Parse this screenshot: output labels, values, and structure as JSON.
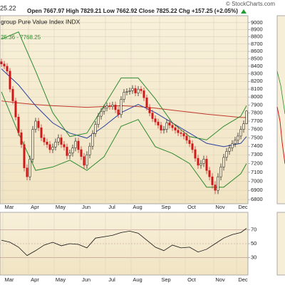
{
  "chart_data": [
    {
      "type": "candlestick",
      "credit": "© StockCharts.com",
      "quote_line": "Open 7667.97 High 7829.21 Low 7662.92 Close 7825.22 Chg +157.25 (+2.05%)",
      "price_note": "25.22",
      "title": "group Pure Value Index  INDX",
      "band_label": "25.36 - 7768.25",
      "xlim": [
        -0.5,
        86.5
      ],
      "xticks": [
        {
          "value": 1,
          "label": "Mar"
        },
        {
          "value": 10,
          "label": "Apr"
        },
        {
          "value": 19,
          "label": "May"
        },
        {
          "value": 28,
          "label": "Jun"
        },
        {
          "value": 37,
          "label": "Jul"
        },
        {
          "value": 46,
          "label": "Aug"
        },
        {
          "value": 56,
          "label": "Sep"
        },
        {
          "value": 65,
          "label": "Oct"
        },
        {
          "value": 75,
          "label": "Nov"
        },
        {
          "value": 83,
          "label": "Dec"
        }
      ],
      "x": [
        0,
        1,
        2,
        3,
        4,
        5,
        6,
        7,
        8,
        9,
        10,
        11,
        12,
        13,
        14,
        15,
        16,
        17,
        18,
        19,
        20,
        21,
        22,
        23,
        24,
        25,
        26,
        27,
        28,
        29,
        30,
        31,
        32,
        33,
        34,
        35,
        36,
        37,
        38,
        39,
        40,
        41,
        42,
        43,
        44,
        45,
        46,
        47,
        48,
        49,
        50,
        51,
        52,
        53,
        54,
        55,
        56,
        57,
        58,
        59,
        60,
        61,
        62,
        63,
        64,
        65,
        66,
        67,
        68,
        69,
        70,
        71,
        72,
        73,
        74,
        75,
        76,
        77,
        78,
        79,
        80,
        81,
        82,
        83,
        84,
        85,
        86
      ],
      "open": [
        8460,
        8430,
        8400,
        8335,
        8100,
        7950,
        7750,
        7560,
        7420,
        7150,
        7050,
        7250,
        7600,
        7700,
        7620,
        7500,
        7450,
        7420,
        7360,
        7390,
        7450,
        7500,
        7420,
        7390,
        7290,
        7320,
        7380,
        7460,
        7360,
        7280,
        7180,
        7300,
        7400,
        7550,
        7660,
        7760,
        7820,
        7860,
        7890,
        7880,
        7900,
        7840,
        7780,
        7970,
        8060,
        8070,
        8080,
        8110,
        8050,
        8100,
        8080,
        7990,
        7870,
        7800,
        7730,
        7690,
        7650,
        7590,
        7600,
        7680,
        7650,
        7620,
        7590,
        7560,
        7550,
        7520,
        7470,
        7430,
        7360,
        7260,
        7180,
        7200,
        7250,
        7120,
        7050,
        6960,
        6900,
        7050,
        7160,
        7270,
        7340,
        7380,
        7430,
        7470,
        7520,
        7600,
        7667.97
      ],
      "high": [
        8500,
        8470,
        8440,
        8375,
        8140,
        7990,
        7790,
        7600,
        7460,
        7190,
        7290,
        7640,
        7740,
        7740,
        7660,
        7540,
        7490,
        7460,
        7430,
        7490,
        7540,
        7540,
        7460,
        7430,
        7360,
        7420,
        7500,
        7500,
        7400,
        7320,
        7340,
        7440,
        7590,
        7700,
        7800,
        7860,
        7900,
        7930,
        7930,
        7940,
        7940,
        7880,
        8010,
        8100,
        8110,
        8120,
        8150,
        8150,
        8140,
        8140,
        8120,
        8030,
        7910,
        7840,
        7770,
        7730,
        7690,
        7640,
        7720,
        7720,
        7690,
        7660,
        7630,
        7600,
        7590,
        7560,
        7510,
        7470,
        7400,
        7300,
        7240,
        7290,
        7290,
        7160,
        7090,
        7000,
        7090,
        7200,
        7310,
        7380,
        7420,
        7470,
        7510,
        7560,
        7640,
        7708,
        7829.21
      ],
      "low": [
        8390,
        8360,
        8295,
        8060,
        7910,
        7710,
        7520,
        7380,
        7110,
        7010,
        7010,
        7210,
        7560,
        7580,
        7460,
        7410,
        7380,
        7320,
        7320,
        7350,
        7410,
        7380,
        7350,
        7250,
        7250,
        7280,
        7340,
        7320,
        7240,
        7140,
        7140,
        7260,
        7360,
        7510,
        7620,
        7720,
        7780,
        7820,
        7840,
        7840,
        7800,
        7740,
        7740,
        7930,
        8020,
        8030,
        8040,
        8010,
        8010,
        8040,
        7950,
        7830,
        7760,
        7690,
        7650,
        7610,
        7550,
        7550,
        7560,
        7610,
        7580,
        7550,
        7520,
        7510,
        7480,
        7430,
        7390,
        7320,
        7220,
        7140,
        7140,
        7160,
        7080,
        7010,
        6920,
        6860,
        6860,
        7010,
        7120,
        7230,
        7300,
        7340,
        7390,
        7430,
        7480,
        7560,
        7662.92
      ],
      "close": [
        8430,
        8400,
        8335,
        8100,
        7950,
        7750,
        7560,
        7420,
        7150,
        7050,
        7250,
        7600,
        7700,
        7620,
        7500,
        7450,
        7420,
        7360,
        7390,
        7450,
        7500,
        7420,
        7390,
        7290,
        7320,
        7380,
        7460,
        7360,
        7280,
        7180,
        7300,
        7400,
        7550,
        7660,
        7760,
        7820,
        7860,
        7890,
        7880,
        7900,
        7840,
        7780,
        7970,
        8060,
        8070,
        8080,
        8110,
        8050,
        8100,
        8080,
        7990,
        7870,
        7800,
        7730,
        7690,
        7650,
        7590,
        7600,
        7680,
        7650,
        7620,
        7590,
        7560,
        7550,
        7520,
        7470,
        7430,
        7360,
        7260,
        7180,
        7200,
        7250,
        7120,
        7050,
        6960,
        6900,
        7050,
        7160,
        7270,
        7340,
        7380,
        7430,
        7470,
        7520,
        7600,
        7668,
        7825.22
      ],
      "up_color": "#111111",
      "down_color": "#d11919",
      "overlays": [
        {
          "color": "#c0392b",
          "x": [
            0,
            6,
            12,
            18,
            24,
            30,
            36,
            42,
            48,
            54,
            60,
            66,
            72,
            78,
            84,
            86
          ],
          "values": [
            7950,
            7925,
            7905,
            7890,
            7880,
            7870,
            7880,
            7890,
            7880,
            7860,
            7835,
            7810,
            7785,
            7765,
            7745,
            7745
          ]
        },
        {
          "color": "#2b3fa0",
          "x": [
            0,
            6,
            12,
            18,
            24,
            30,
            36,
            42,
            48,
            54,
            60,
            66,
            72,
            78,
            84,
            86
          ],
          "values": [
            8365,
            8155,
            7890,
            7678,
            7555,
            7495,
            7637,
            7804,
            7906,
            7804,
            7678,
            7555,
            7434,
            7394,
            7434,
            7514
          ]
        },
        {
          "color": "#2e8b2e",
          "x": [
            0,
            6,
            12,
            18,
            24,
            30,
            36,
            42,
            48,
            54,
            60,
            66,
            72,
            78,
            84,
            86
          ],
          "values": [
            8768,
            8869,
            8335,
            7804,
            7514,
            7555,
            7890,
            8245,
            8245,
            7977,
            7678,
            7514,
            7474,
            7637,
            7762,
            7890
          ]
        },
        {
          "color": "#2e8b2e",
          "x": [
            0,
            6,
            12,
            18,
            24,
            30,
            36,
            42,
            48,
            54,
            60,
            66,
            72,
            78,
            84,
            86
          ],
          "values": [
            8065,
            7555,
            7122,
            7160,
            7238,
            7122,
            7277,
            7637,
            7720,
            7394,
            7316,
            7200,
            6935,
            6935,
            7085,
            7200
          ]
        }
      ],
      "log": true,
      "ylim": [
        6755,
        9100
      ],
      "yticks": [
        6800,
        6900,
        7000,
        7100,
        7200,
        7300,
        7400,
        7500,
        7600,
        7700,
        7800,
        7900,
        8000,
        8100,
        8200,
        8300,
        8400,
        8500,
        8600,
        8700,
        8800,
        8900,
        9000
      ],
      "grid": true
    },
    {
      "type": "line",
      "xlim": [
        -0.5,
        86.5
      ],
      "xticks": [
        {
          "value": 1,
          "label": "Mar"
        },
        {
          "value": 10,
          "label": "Apr"
        },
        {
          "value": 19,
          "label": "May"
        },
        {
          "value": 28,
          "label": "Jun"
        },
        {
          "value": 37,
          "label": "Jul"
        },
        {
          "value": 46,
          "label": "Aug"
        },
        {
          "value": 56,
          "label": "Sep"
        },
        {
          "value": 65,
          "label": "Oct"
        },
        {
          "value": 75,
          "label": "Nov"
        },
        {
          "value": 83,
          "label": "Dec"
        }
      ],
      "x": [
        0,
        3,
        6,
        9,
        12,
        15,
        18,
        21,
        24,
        27,
        30,
        33,
        36,
        39,
        42,
        45,
        48,
        51,
        54,
        57,
        60,
        63,
        66,
        69,
        72,
        75,
        78,
        81,
        84,
        86
      ],
      "values": [
        55,
        52,
        45,
        33,
        40,
        48,
        52,
        47,
        50,
        49,
        44,
        58,
        60,
        62,
        66,
        68,
        65,
        55,
        45,
        40,
        48,
        44,
        45,
        38,
        42,
        50,
        58,
        63,
        66,
        72
      ],
      "color": "#111111",
      "ylim": [
        5,
        95
      ],
      "yticks": [
        30,
        50,
        70
      ],
      "grid": true
    }
  ]
}
